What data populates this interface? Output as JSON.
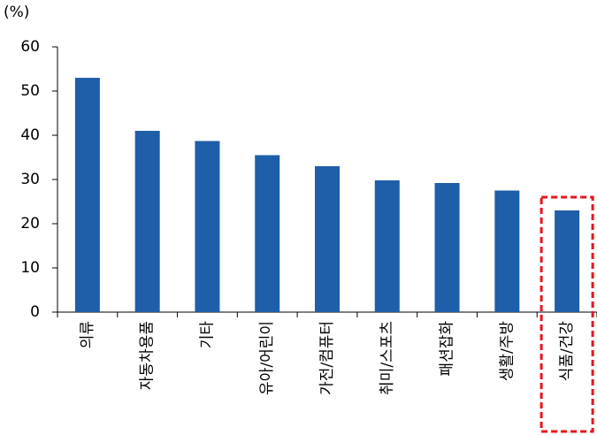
{
  "chart_data": {
    "type": "bar",
    "unit_label": "(%)",
    "categories": [
      "의류",
      "자동차용품",
      "기타",
      "유아/어린이",
      "가전/컴퓨터",
      "취미/스포츠",
      "패션잡화",
      "생활/주방",
      "식품/건강"
    ],
    "values": [
      53,
      41,
      38.7,
      35.5,
      33,
      29.8,
      29.2,
      27.5,
      23
    ],
    "color": "#1f5ea8",
    "ylim": [
      0,
      60
    ],
    "yticks": [
      0,
      10,
      20,
      30,
      40,
      50,
      60
    ],
    "grid": false,
    "highlight_color": "#e8141b"
  }
}
